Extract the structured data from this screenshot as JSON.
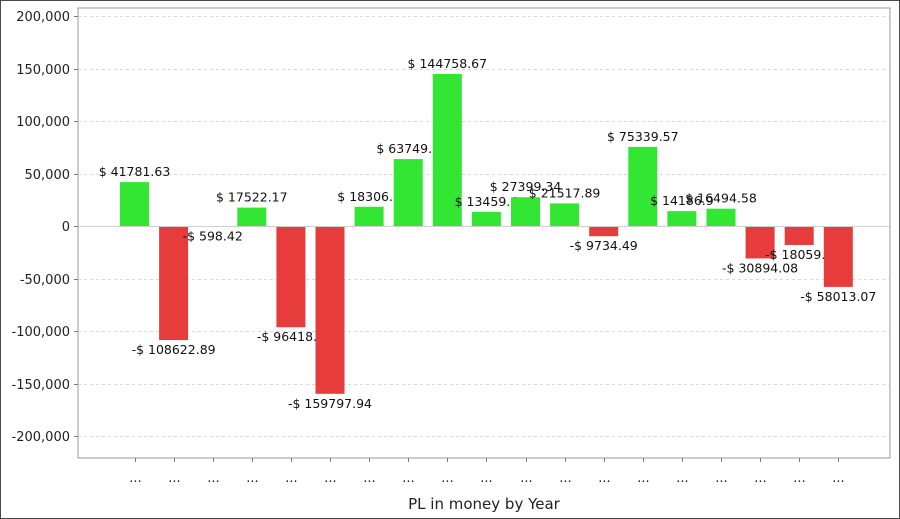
{
  "chart_data": {
    "type": "bar",
    "title": "",
    "xlabel": "PL in money by Year",
    "ylabel": "",
    "ylim": [
      -220000,
      210000
    ],
    "y_ticks": [
      "200,000",
      "150,000",
      "100,000",
      "50,000",
      "0",
      "-50,000",
      "-100,000",
      "-150,000",
      "-200,000"
    ],
    "y_tick_values": [
      200000,
      150000,
      100000,
      50000,
      0,
      -50000,
      -100000,
      -150000,
      -200000
    ],
    "categories": [
      "...",
      "...",
      "...",
      "...",
      "...",
      "...",
      "...",
      "...",
      "...",
      "...",
      "...",
      "...",
      "...",
      "...",
      "...",
      "...",
      "...",
      "...",
      "..."
    ],
    "values": [
      41781.63,
      -108622.89,
      -598.42,
      17522.17,
      -96418.3,
      -159797.94,
      18306.3,
      63749.5,
      144758.67,
      13459.6,
      27399.34,
      21517.89,
      -9734.49,
      75339.57,
      14186.9,
      16494.58,
      -30894.08,
      -18059.3,
      -58013.07
    ],
    "data_labels": [
      "$ 41781.63",
      "-$ 108622.89",
      "-$ 598.42",
      "$ 17522.17",
      "-$ 96418.3",
      "-$ 159797.94",
      "$ 18306.3",
      "$ 63749.5",
      "$ 144758.67",
      "$ 13459.6",
      "$ 27399.34",
      "$ 21517.89",
      "-$ 9734.49",
      "$ 75339.57",
      "$ 14186.9",
      "$ 16494.58",
      "-$ 30894.08",
      "-$ 18059.3",
      "-$ 58013.07"
    ],
    "positive_color": "#33e633",
    "negative_color": "#e63c3c",
    "grid": true
  }
}
